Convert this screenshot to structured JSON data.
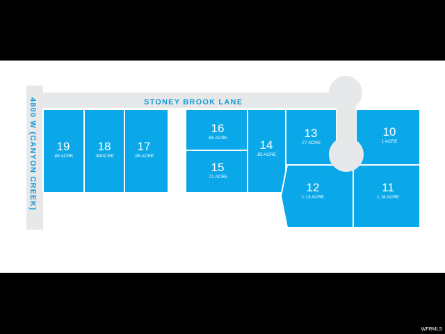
{
  "map": {
    "streets": {
      "top": "STONEY BROOK LANE",
      "left": "4800 W (CANYON CREEK)"
    },
    "lots": [
      {
        "id": "19",
        "number": "19",
        "acreage": ".89 ACRE"
      },
      {
        "id": "18",
        "number": "18",
        "acreage": ".89ACRE"
      },
      {
        "id": "17",
        "number": "17",
        "acreage": ".98 ACRE"
      },
      {
        "id": "16",
        "number": "16",
        "acreage": ".69 ACRE"
      },
      {
        "id": "15",
        "number": "15",
        "acreage": ".71 ACRE"
      },
      {
        "id": "14",
        "number": "14",
        "acreage": ".85 ACRE"
      },
      {
        "id": "13",
        "number": "13",
        "acreage": ".77 ACRE"
      },
      {
        "id": "10",
        "number": "10",
        "acreage": "1 ACRE"
      },
      {
        "id": "12",
        "number": "12",
        "acreage": "1.13 ACRE"
      },
      {
        "id": "11",
        "number": "11",
        "acreage": "1.18 ACRE"
      }
    ],
    "colors": {
      "lot_fill": "#0aa8e8",
      "road": "#e6e8e9",
      "label": "#1399d6",
      "background": "#ffffff",
      "letterbox": "#000000"
    }
  },
  "watermark": "WFRMLS"
}
